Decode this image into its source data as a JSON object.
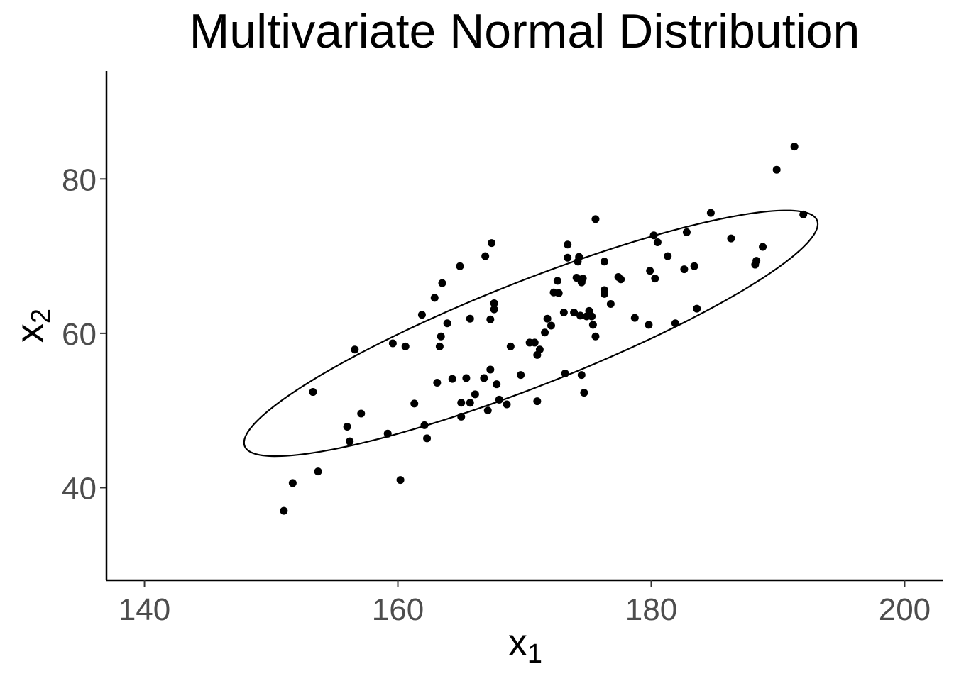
{
  "chart_data": {
    "type": "scatter",
    "title": "Multivariate Normal Distribution",
    "xlabel": {
      "base": "x",
      "sub": "1"
    },
    "ylabel": {
      "base": "x",
      "sub": "2"
    },
    "xlim": [
      137,
      203
    ],
    "ylim": [
      28,
      94
    ],
    "x_ticks": [
      140,
      160,
      180,
      200
    ],
    "y_ticks": [
      40,
      60,
      80
    ],
    "grid": false,
    "point_color": "#000000",
    "ellipse": {
      "center": [
        170.5,
        60.0
      ],
      "semi_major": 27.0,
      "semi_minor": 6.1,
      "angle_deg": 34.0
    },
    "points": [
      [
        151.0,
        37.0
      ],
      [
        151.7,
        40.6
      ],
      [
        153.3,
        52.4
      ],
      [
        153.7,
        42.1
      ],
      [
        156.0,
        47.9
      ],
      [
        156.2,
        46.0
      ],
      [
        156.6,
        57.9
      ],
      [
        157.1,
        49.6
      ],
      [
        159.2,
        47.0
      ],
      [
        159.6,
        58.7
      ],
      [
        160.2,
        41.0
      ],
      [
        160.6,
        58.3
      ],
      [
        161.3,
        50.9
      ],
      [
        161.9,
        62.4
      ],
      [
        162.1,
        48.1
      ],
      [
        162.3,
        46.4
      ],
      [
        162.9,
        64.6
      ],
      [
        163.1,
        53.6
      ],
      [
        163.3,
        58.3
      ],
      [
        163.4,
        59.6
      ],
      [
        163.5,
        66.5
      ],
      [
        163.9,
        61.3
      ],
      [
        164.3,
        54.1
      ],
      [
        164.9,
        68.7
      ],
      [
        165.0,
        49.2
      ],
      [
        165.0,
        51.0
      ],
      [
        165.4,
        54.2
      ],
      [
        165.7,
        61.9
      ],
      [
        165.7,
        51.0
      ],
      [
        166.1,
        52.1
      ],
      [
        166.8,
        54.2
      ],
      [
        166.9,
        70.0
      ],
      [
        167.1,
        50.0
      ],
      [
        167.3,
        55.3
      ],
      [
        167.3,
        61.8
      ],
      [
        167.4,
        71.7
      ],
      [
        167.6,
        63.9
      ],
      [
        167.6,
        63.1
      ],
      [
        167.8,
        53.4
      ],
      [
        168.0,
        51.4
      ],
      [
        168.6,
        50.8
      ],
      [
        168.9,
        58.3
      ],
      [
        169.7,
        54.6
      ],
      [
        170.4,
        58.8
      ],
      [
        170.8,
        58.8
      ],
      [
        171.0,
        57.2
      ],
      [
        171.0,
        51.2
      ],
      [
        171.2,
        57.9
      ],
      [
        171.6,
        60.1
      ],
      [
        171.8,
        61.9
      ],
      [
        172.1,
        61.0
      ],
      [
        172.3,
        65.3
      ],
      [
        172.6,
        66.8
      ],
      [
        172.7,
        65.2
      ],
      [
        173.1,
        62.7
      ],
      [
        173.2,
        54.8
      ],
      [
        173.4,
        71.5
      ],
      [
        173.4,
        69.8
      ],
      [
        173.9,
        62.7
      ],
      [
        174.1,
        67.2
      ],
      [
        174.2,
        69.3
      ],
      [
        174.3,
        69.9
      ],
      [
        174.4,
        62.3
      ],
      [
        174.5,
        54.6
      ],
      [
        174.5,
        66.6
      ],
      [
        174.6,
        67.1
      ],
      [
        174.7,
        52.3
      ],
      [
        174.9,
        62.2
      ],
      [
        175.1,
        62.9
      ],
      [
        175.3,
        62.2
      ],
      [
        175.4,
        61.1
      ],
      [
        175.6,
        59.6
      ],
      [
        175.6,
        74.8
      ],
      [
        176.3,
        69.3
      ],
      [
        176.3,
        65.1
      ],
      [
        176.3,
        65.6
      ],
      [
        176.8,
        63.8
      ],
      [
        177.4,
        67.3
      ],
      [
        177.6,
        67.0
      ],
      [
        178.7,
        62.0
      ],
      [
        179.8,
        61.1
      ],
      [
        179.9,
        68.1
      ],
      [
        180.2,
        72.7
      ],
      [
        180.3,
        67.1
      ],
      [
        180.5,
        71.8
      ],
      [
        181.3,
        70.0
      ],
      [
        181.9,
        61.3
      ],
      [
        182.6,
        68.3
      ],
      [
        182.8,
        73.1
      ],
      [
        183.4,
        68.7
      ],
      [
        183.6,
        63.2
      ],
      [
        184.7,
        75.6
      ],
      [
        186.3,
        72.3
      ],
      [
        188.2,
        68.9
      ],
      [
        188.3,
        69.4
      ],
      [
        188.8,
        71.2
      ],
      [
        189.9,
        81.2
      ],
      [
        191.3,
        84.2
      ],
      [
        192.0,
        75.4
      ]
    ]
  }
}
